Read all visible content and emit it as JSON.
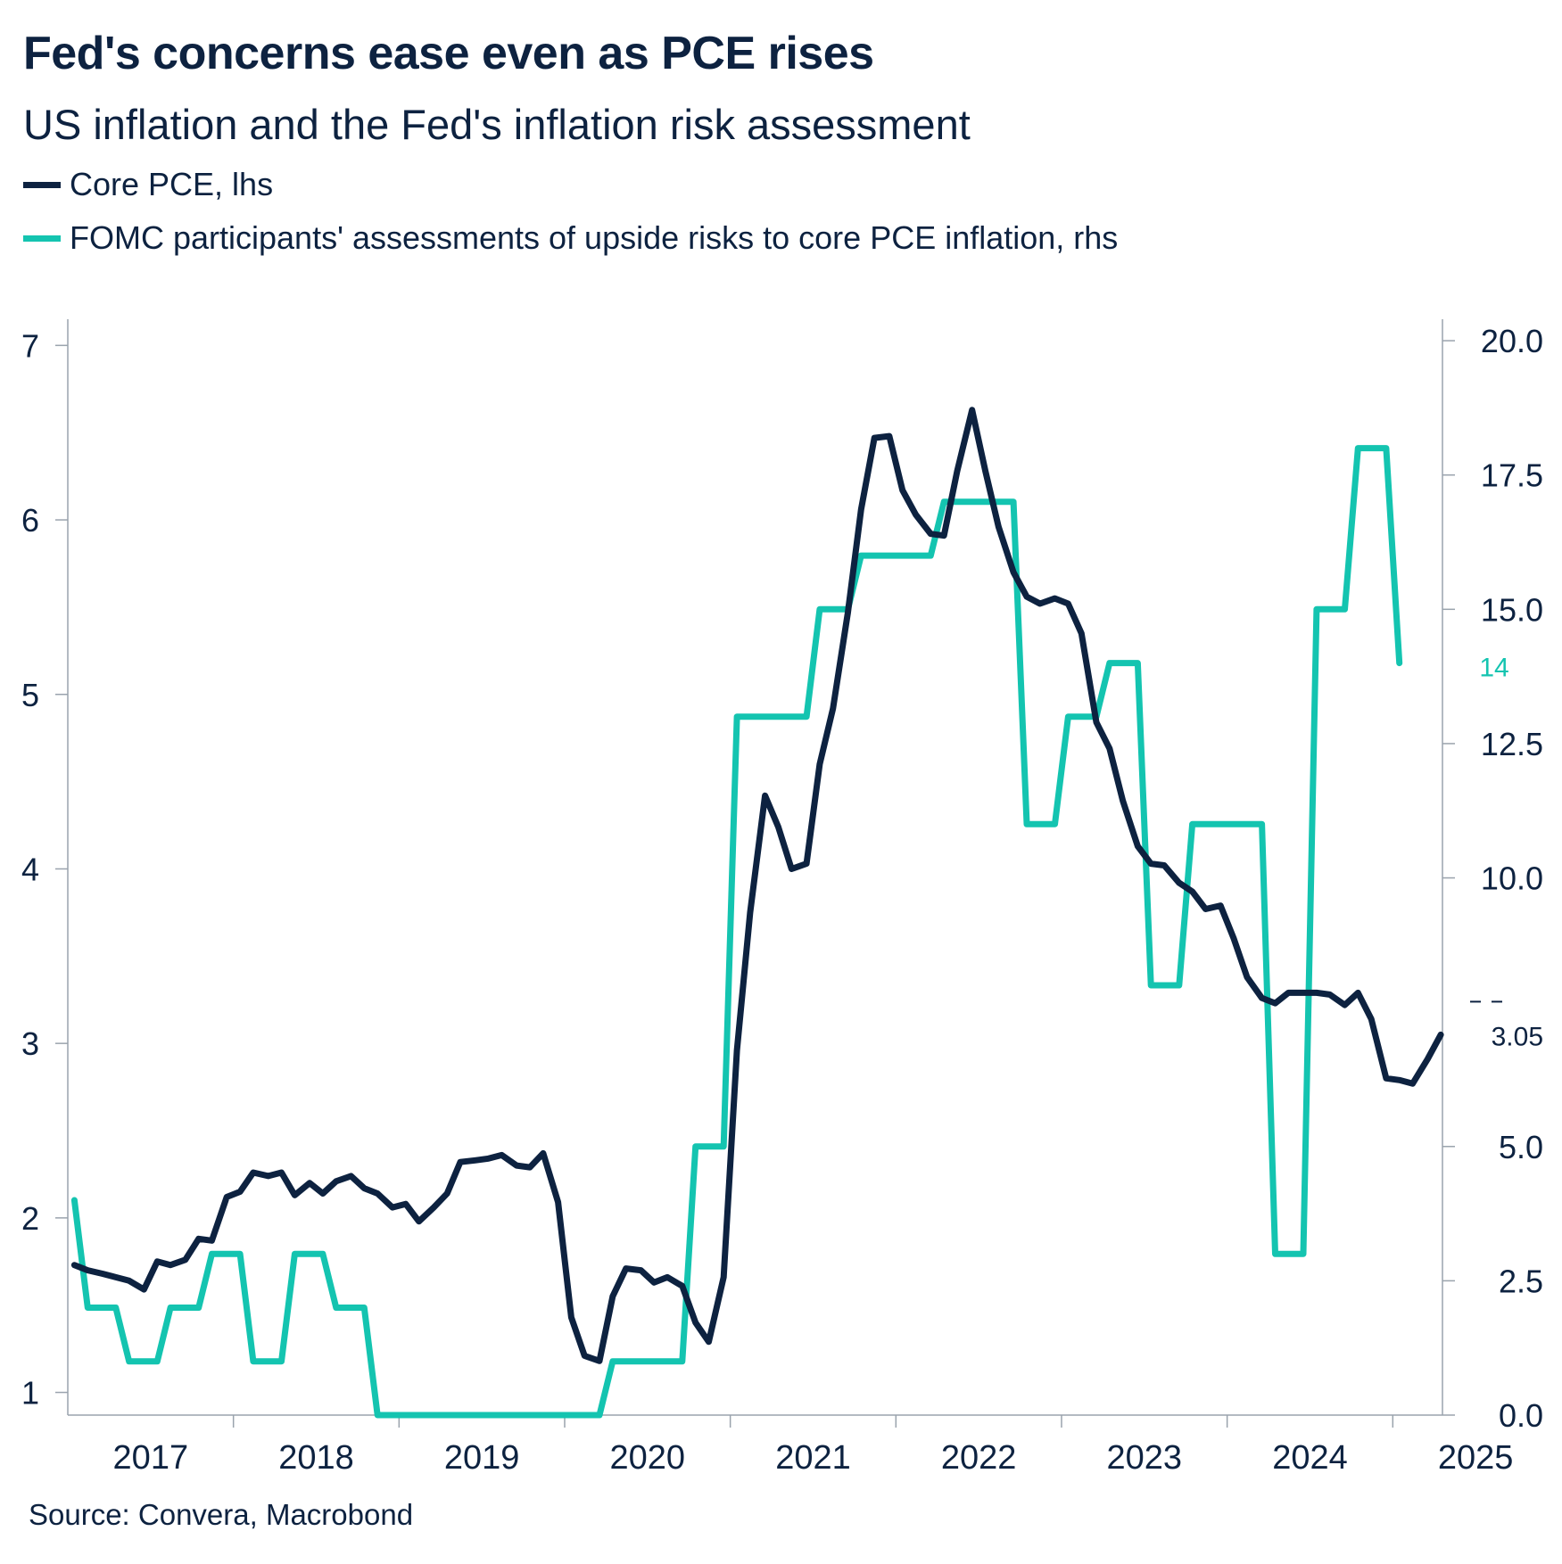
{
  "chart_data": {
    "type": "line",
    "title": "Fed's concerns ease even as PCE rises",
    "subtitle": "US inflation and the Fed's inflation risk assessment",
    "source": "Source: Convera, Macrobond",
    "x_axis": {
      "tick_labels": [
        "2017",
        "2018",
        "2019",
        "2020",
        "2021",
        "2022",
        "2023",
        "2024",
        "2025"
      ],
      "range": [
        2017.0,
        2025.3
      ]
    },
    "y_left": {
      "range": [
        0.87,
        7.15
      ],
      "ticks": [
        1,
        2,
        3,
        4,
        5,
        6,
        7
      ],
      "tick_labels": [
        "1",
        "2",
        "3",
        "4",
        "5",
        "6",
        "7"
      ]
    },
    "y_right": {
      "range": [
        0.0,
        20.4
      ],
      "ticks": [
        0,
        2.5,
        5,
        10,
        12.5,
        15,
        17.5,
        20
      ],
      "tick_labels": [
        "0.0",
        "2.5",
        "5.0",
        "10.0",
        "12.5",
        "15.0",
        "17.5",
        "20.0"
      ]
    },
    "series": [
      {
        "name": "Core PCE, lhs",
        "axis": "left",
        "color": "#0d2240",
        "last_value_label": "3.05",
        "points": [
          [
            2017.04,
            1.73
          ],
          [
            2017.12,
            1.7
          ],
          [
            2017.21,
            1.68
          ],
          [
            2017.29,
            1.66
          ],
          [
            2017.37,
            1.64
          ],
          [
            2017.46,
            1.59
          ],
          [
            2017.54,
            1.75
          ],
          [
            2017.62,
            1.73
          ],
          [
            2017.71,
            1.76
          ],
          [
            2017.79,
            1.88
          ],
          [
            2017.87,
            1.87
          ],
          [
            2017.96,
            2.12
          ],
          [
            2018.04,
            2.15
          ],
          [
            2018.12,
            2.26
          ],
          [
            2018.21,
            2.24
          ],
          [
            2018.29,
            2.26
          ],
          [
            2018.37,
            2.13
          ],
          [
            2018.46,
            2.2
          ],
          [
            2018.54,
            2.14
          ],
          [
            2018.62,
            2.21
          ],
          [
            2018.71,
            2.24
          ],
          [
            2018.79,
            2.17
          ],
          [
            2018.87,
            2.14
          ],
          [
            2018.96,
            2.06
          ],
          [
            2019.04,
            2.08
          ],
          [
            2019.12,
            1.98
          ],
          [
            2019.21,
            2.06
          ],
          [
            2019.29,
            2.14
          ],
          [
            2019.37,
            2.32
          ],
          [
            2019.46,
            2.33
          ],
          [
            2019.54,
            2.34
          ],
          [
            2019.62,
            2.36
          ],
          [
            2019.71,
            2.3
          ],
          [
            2019.79,
            2.29
          ],
          [
            2019.87,
            2.37
          ],
          [
            2019.96,
            2.09
          ],
          [
            2020.04,
            1.43
          ],
          [
            2020.12,
            1.21
          ],
          [
            2020.21,
            1.18
          ],
          [
            2020.29,
            1.55
          ],
          [
            2020.37,
            1.71
          ],
          [
            2020.46,
            1.7
          ],
          [
            2020.54,
            1.63
          ],
          [
            2020.62,
            1.66
          ],
          [
            2020.71,
            1.61
          ],
          [
            2020.79,
            1.4
          ],
          [
            2020.87,
            1.29
          ],
          [
            2020.96,
            1.66
          ],
          [
            2021.04,
            2.96
          ],
          [
            2021.12,
            3.75
          ],
          [
            2021.21,
            4.42
          ],
          [
            2021.29,
            4.24
          ],
          [
            2021.37,
            4.0
          ],
          [
            2021.46,
            4.03
          ],
          [
            2021.54,
            4.6
          ],
          [
            2021.62,
            4.92
          ],
          [
            2021.71,
            5.47
          ],
          [
            2021.79,
            6.06
          ],
          [
            2021.87,
            6.47
          ],
          [
            2021.96,
            6.48
          ],
          [
            2022.04,
            6.17
          ],
          [
            2022.12,
            6.03
          ],
          [
            2022.21,
            5.92
          ],
          [
            2022.29,
            5.91
          ],
          [
            2022.37,
            6.28
          ],
          [
            2022.46,
            6.63
          ],
          [
            2022.54,
            6.28
          ],
          [
            2022.62,
            5.96
          ],
          [
            2022.71,
            5.7
          ],
          [
            2022.79,
            5.56
          ],
          [
            2022.87,
            5.52
          ],
          [
            2022.96,
            5.55
          ],
          [
            2023.04,
            5.52
          ],
          [
            2023.12,
            5.35
          ],
          [
            2023.21,
            4.84
          ],
          [
            2023.29,
            4.69
          ],
          [
            2023.37,
            4.39
          ],
          [
            2023.46,
            4.13
          ],
          [
            2023.54,
            4.03
          ],
          [
            2023.62,
            4.02
          ],
          [
            2023.71,
            3.92
          ],
          [
            2023.79,
            3.87
          ],
          [
            2023.87,
            3.77
          ],
          [
            2023.96,
            3.79
          ],
          [
            2024.04,
            3.6
          ],
          [
            2024.12,
            3.38
          ],
          [
            2024.21,
            3.26
          ],
          [
            2024.29,
            3.23
          ],
          [
            2024.37,
            3.29
          ],
          [
            2024.46,
            3.29
          ],
          [
            2024.54,
            3.29
          ],
          [
            2024.62,
            3.28
          ],
          [
            2024.71,
            3.22
          ],
          [
            2024.79,
            3.29
          ],
          [
            2024.87,
            3.14
          ],
          [
            2024.96,
            2.8
          ],
          [
            2025.04,
            2.79
          ],
          [
            2025.12,
            2.77
          ],
          [
            2025.21,
            2.91
          ],
          [
            2025.29,
            3.05
          ]
        ]
      },
      {
        "name": "FOMC participants' assessments of upside risks to core PCE inflation, rhs",
        "axis": "right",
        "color": "#14c4b0",
        "step": true,
        "last_value_label": "14",
        "points": [
          [
            2017.04,
            4
          ],
          [
            2017.12,
            2
          ],
          [
            2017.29,
            2
          ],
          [
            2017.37,
            1
          ],
          [
            2017.54,
            1
          ],
          [
            2017.62,
            2
          ],
          [
            2017.79,
            2
          ],
          [
            2017.87,
            3
          ],
          [
            2018.04,
            3
          ],
          [
            2018.12,
            1
          ],
          [
            2018.29,
            1
          ],
          [
            2018.37,
            3
          ],
          [
            2018.54,
            3
          ],
          [
            2018.62,
            2
          ],
          [
            2018.79,
            2
          ],
          [
            2018.87,
            0
          ],
          [
            2019.04,
            0
          ],
          [
            2020.21,
            0
          ],
          [
            2020.29,
            1
          ],
          [
            2020.71,
            1
          ],
          [
            2020.79,
            5
          ],
          [
            2020.96,
            5
          ],
          [
            2021.04,
            13
          ],
          [
            2021.46,
            13
          ],
          [
            2021.54,
            15
          ],
          [
            2021.71,
            15
          ],
          [
            2021.79,
            16
          ],
          [
            2022.21,
            16
          ],
          [
            2022.29,
            17
          ],
          [
            2022.71,
            17
          ],
          [
            2022.79,
            11
          ],
          [
            2022.96,
            11
          ],
          [
            2023.04,
            13
          ],
          [
            2023.21,
            13
          ],
          [
            2023.29,
            14
          ],
          [
            2023.46,
            14
          ],
          [
            2023.54,
            8
          ],
          [
            2023.71,
            8
          ],
          [
            2023.79,
            11
          ],
          [
            2024.21,
            11
          ],
          [
            2024.29,
            3
          ],
          [
            2024.46,
            3
          ],
          [
            2024.54,
            15
          ],
          [
            2024.71,
            15
          ],
          [
            2024.79,
            18
          ],
          [
            2024.96,
            18
          ],
          [
            2025.04,
            14
          ]
        ]
      }
    ]
  }
}
